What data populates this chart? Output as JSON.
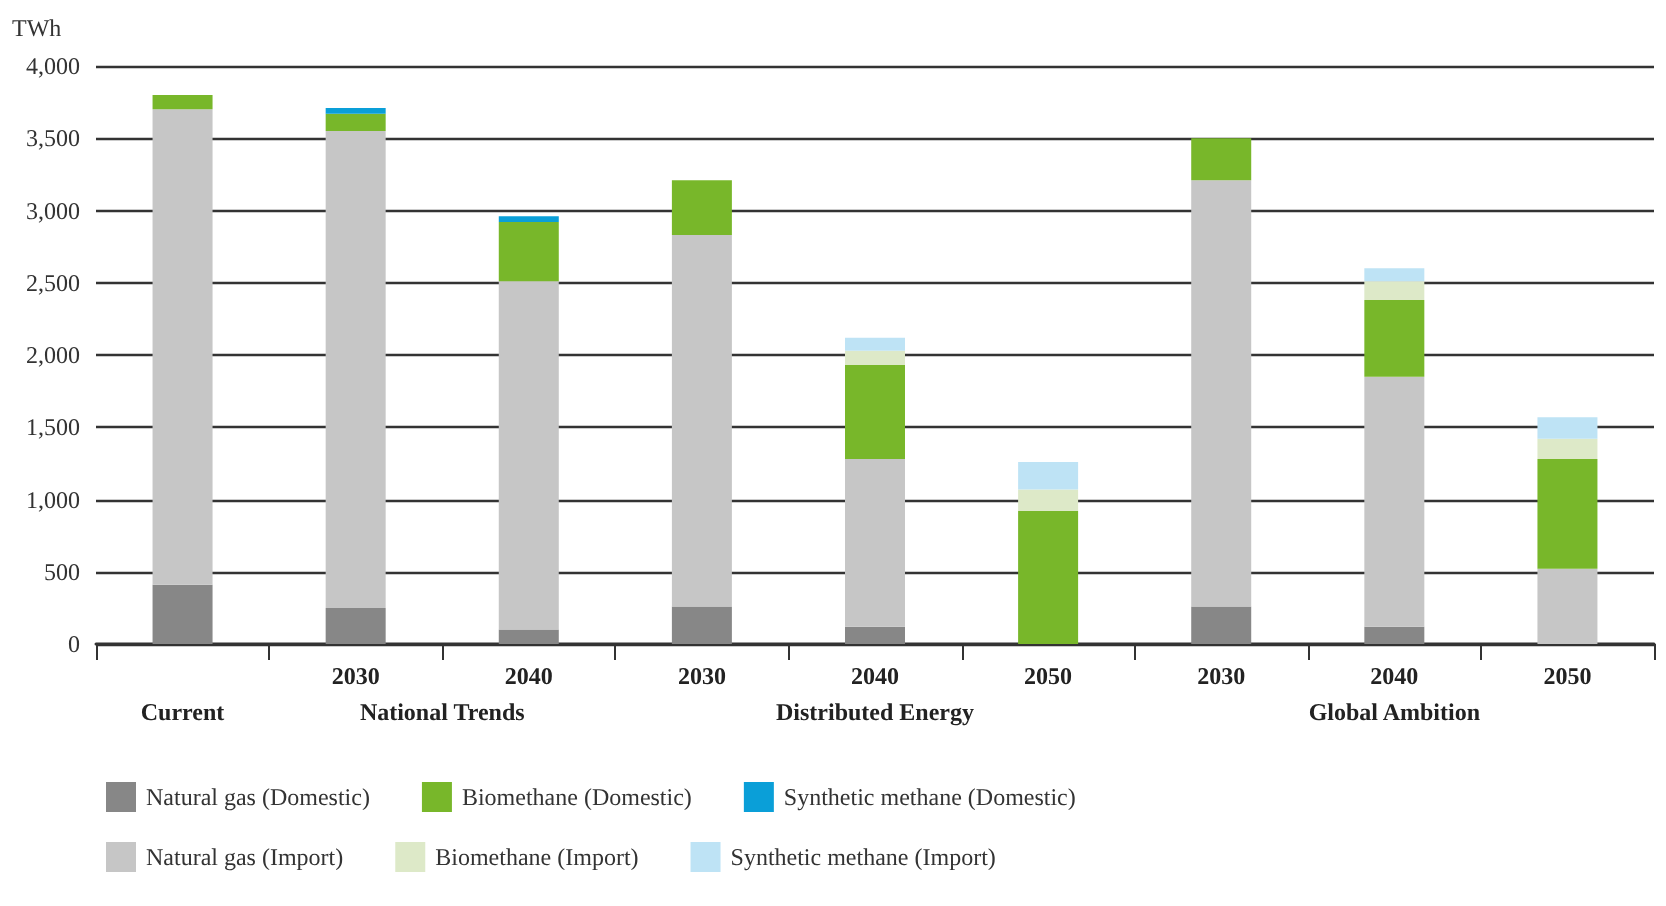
{
  "chart_data": {
    "type": "bar",
    "stacked": true,
    "ylabel": "TWh",
    "categories": [
      null,
      "2030",
      "2040",
      "2030",
      "2040",
      "2050",
      "2030",
      "2040",
      "2050"
    ],
    "annotations": [
      "Current",
      "National Trends",
      "Distributed Energy",
      "Global Ambition"
    ],
    "series": [
      {
        "name": "Natural gas (Domestic)",
        "color": "#878787",
        "values": [
          410,
          250,
          100,
          260,
          120,
          0,
          260,
          120,
          0
        ]
      },
      {
        "name": "Natural gas (Import)",
        "color": "#c6c6c6",
        "values": [
          3290,
          3300,
          2410,
          2570,
          1160,
          0,
          2950,
          1730,
          520
        ]
      },
      {
        "name": "Biomethane (Domestic)",
        "color": "#78b72a",
        "values": [
          100,
          120,
          410,
          380,
          650,
          920,
          290,
          530,
          760
        ]
      },
      {
        "name": "Biomethane (Import)",
        "color": "#dde9c8",
        "values": [
          0,
          0,
          0,
          0,
          100,
          150,
          0,
          130,
          140
        ]
      },
      {
        "name": "Synthetic methane (Domestic)",
        "color": "#0a9fd8",
        "values": [
          0,
          40,
          40,
          0,
          0,
          0,
          0,
          0,
          0
        ]
      },
      {
        "name": "Synthetic methane (Import)",
        "color": "#bee3f5",
        "values": [
          0,
          0,
          0,
          0,
          90,
          190,
          0,
          90,
          150
        ]
      }
    ],
    "ylim": [
      0,
      4000
    ],
    "yticks": [
      0,
      500,
      {
        "value": 1000,
        "label": "1,000"
      },
      {
        "value": 1500,
        "label": "1,500"
      },
      {
        "value": 2000,
        "label": "2,000"
      },
      {
        "value": 2500,
        "label": "2,500"
      },
      {
        "value": 3000,
        "label": "3,000"
      },
      {
        "value": 3500,
        "label": "3,500"
      },
      {
        "value": 4000,
        "label": "4,000"
      }
    ],
    "grid": "y",
    "legend": "bottom"
  }
}
